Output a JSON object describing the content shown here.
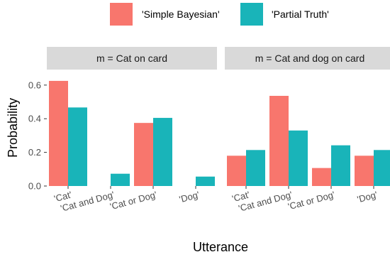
{
  "chart_data": {
    "type": "bar",
    "xlabel": "Utterance",
    "ylabel": "Probability",
    "ylim": [
      0,
      0.65
    ],
    "yticks": [
      0.0,
      0.2,
      0.4,
      0.6
    ],
    "ytick_labels": [
      "0.0",
      "0.2",
      "0.4",
      "0.6"
    ],
    "legend_position": "top",
    "categories": [
      "'Cat'",
      "'Cat and Dog'",
      "'Cat or Dog'",
      "'Dog'"
    ],
    "series_meta": [
      {
        "name": "'Simple Bayesian'",
        "color": "#F8766D"
      },
      {
        "name": "'Partial Truth'",
        "color": "#19B4B9"
      }
    ],
    "facets": [
      {
        "label": "m = Cat on card",
        "series": [
          {
            "name": "'Simple Bayesian'",
            "values": [
              0.625,
              0.0,
              0.375,
              0.0
            ]
          },
          {
            "name": "'Partial Truth'",
            "values": [
              0.467,
              0.073,
              0.405,
              0.056
            ]
          }
        ]
      },
      {
        "label": "m = Cat and dog on card",
        "series": [
          {
            "name": "'Simple Bayesian'",
            "values": [
              0.18,
              0.536,
              0.107,
              0.18
            ]
          },
          {
            "name": "'Partial Truth'",
            "values": [
              0.214,
              0.33,
              0.242,
              0.214
            ]
          }
        ]
      }
    ]
  }
}
